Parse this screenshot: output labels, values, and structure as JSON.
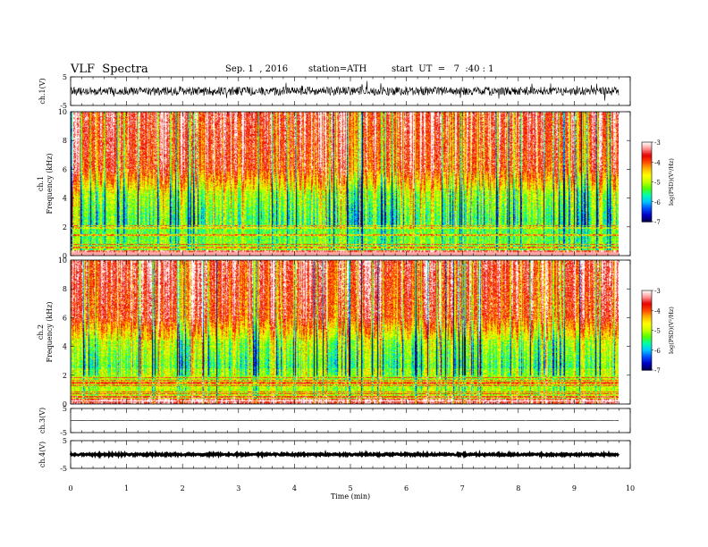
{
  "header": {
    "title": "VLF  Spectra",
    "date": "Sep. 1  , 2016",
    "station": "station=ATH",
    "start": "start  UT  =   7  :40 : 1"
  },
  "chart_data": [
    {
      "type": "line",
      "panel": "ch1-waveform",
      "ylabel": "ch.1(V)",
      "yticks": [
        "5",
        "-5"
      ],
      "ylim": [
        -5,
        5
      ],
      "xlim": [
        0,
        10
      ],
      "series": [
        {
          "color": "#000000",
          "baseline": 0.0,
          "amplitude_approx": 1.5
        }
      ]
    },
    {
      "type": "heatmap",
      "panel": "ch1-spectrogram",
      "ylabel_channel": "ch.1",
      "ylabel": "Frequency  (kHz)",
      "yticks": [
        "0",
        "2",
        "4",
        "6",
        "8",
        "10"
      ],
      "ylim": [
        0,
        10
      ],
      "xlim": [
        0,
        10
      ],
      "colorbar": {
        "label": "log(PSD)(V²/Hz)",
        "ticks": [
          "-3",
          "-4",
          "-5",
          "-6",
          "-7"
        ],
        "range": [
          -7,
          -3
        ]
      }
    },
    {
      "type": "heatmap",
      "panel": "ch2-spectrogram",
      "ylabel_channel": "ch.2",
      "ylabel": "Frequency  (kHz)",
      "yticks": [
        "0",
        "2",
        "4",
        "6",
        "8",
        "10"
      ],
      "ylim": [
        0,
        10
      ],
      "xlim": [
        0,
        10
      ],
      "colorbar": {
        "label": "log(PSD)(V²/Hz)",
        "ticks": [
          "-3",
          "-4",
          "-5",
          "-6",
          "-7"
        ],
        "range": [
          -7,
          -3
        ]
      }
    },
    {
      "type": "line",
      "panel": "ch3-waveform",
      "ylabel": "ch.3(V)",
      "yticks": [
        "5",
        "-5"
      ],
      "ylim": [
        -5,
        5
      ],
      "xlim": [
        0,
        10
      ],
      "series": [
        {
          "color": "#000000",
          "baseline": 0.0,
          "amplitude_approx": 0.05
        }
      ]
    },
    {
      "type": "line",
      "panel": "ch4-waveform",
      "ylabel": "ch.4(V)",
      "yticks": [
        "5",
        "-5"
      ],
      "ylim": [
        -5,
        5
      ],
      "xlim": [
        0,
        10
      ],
      "series": [
        {
          "color": "#000000",
          "baseline": 0.0,
          "amplitude_approx": 0.3
        }
      ]
    }
  ],
  "xaxis": {
    "label": "Time  (min)",
    "ticks": [
      "0",
      "1",
      "2",
      "3",
      "4",
      "5",
      "6",
      "7",
      "8",
      "9",
      "10"
    ],
    "data_end": 9.8
  },
  "colors": {
    "background": "#ffffff",
    "frame": "#000000",
    "colormap": [
      "#000050",
      "#0000c8",
      "#0050ff",
      "#00c8ff",
      "#00ffaa",
      "#50ff00",
      "#c8ff00",
      "#ffff00",
      "#ffb400",
      "#ff4600",
      "#e60000",
      "#ff9696",
      "#ffffff"
    ]
  }
}
